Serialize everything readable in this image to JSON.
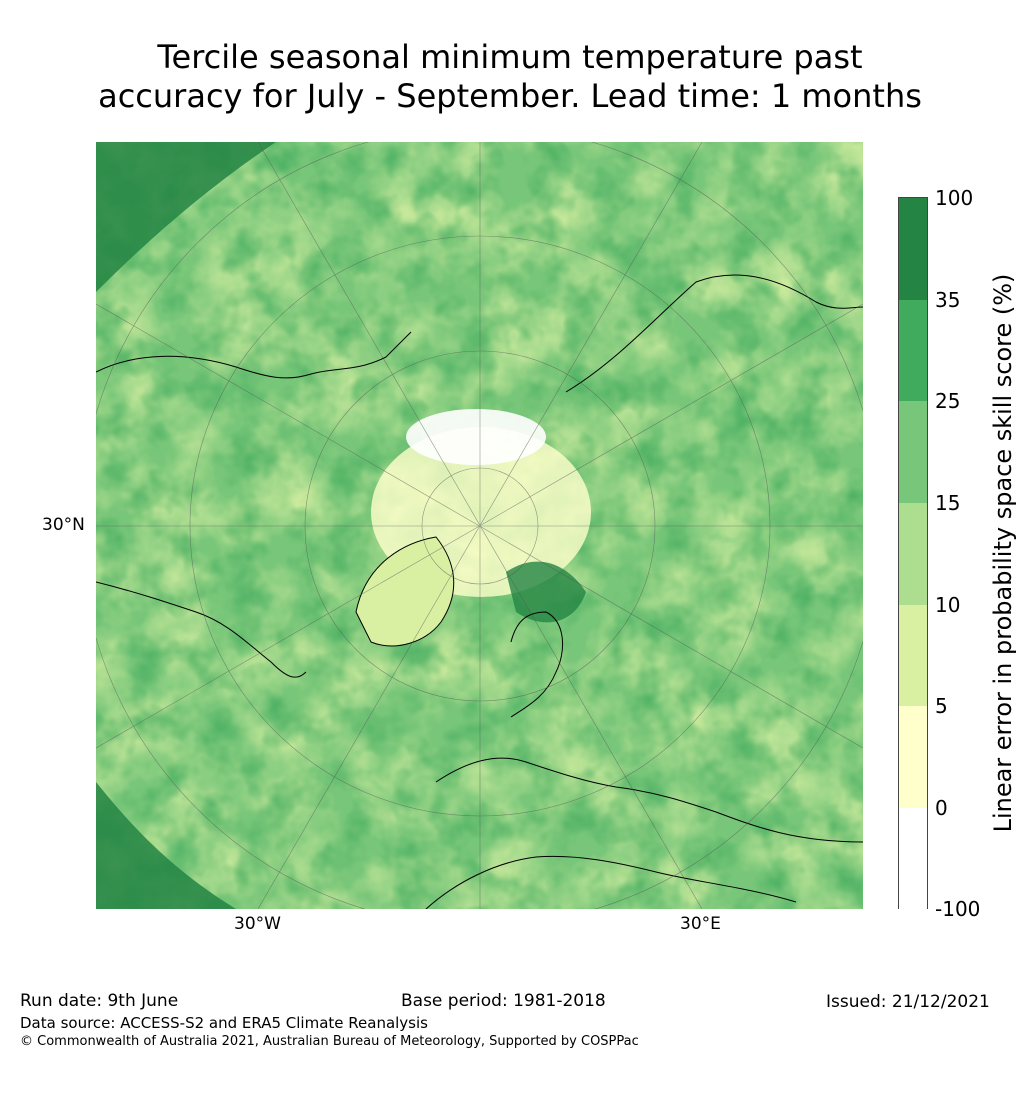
{
  "title_line1": "Tercile seasonal minimum temperature past",
  "title_line2": "accuracy for July - September. Lead time: 1 months",
  "axis_labels": {
    "lat_left": "30°N",
    "lon_left": "30°W",
    "lon_right": "30°E"
  },
  "colorbar": {
    "label": "Linear error in probability space skill score (%)",
    "ticks": [
      "100",
      "35",
      "25",
      "15",
      "10",
      "5",
      "0",
      "-100"
    ],
    "colors": [
      "#238443",
      "#41ab5d",
      "#78c679",
      "#addd8e",
      "#d9f0a3",
      "#ffffcc",
      "#ffffff"
    ]
  },
  "footer": {
    "run_date": "Run date: 9th June",
    "base_period": "Base period: 1981-2018",
    "issued": "Issued: 21/12/2021",
    "data_source": "Data source: ACCESS-S2 and ERA5 Climate Reanalysis",
    "copyright": "© Commonwealth of Australia 2021, Australian Bureau of Meteorology, Supported by COSPPac"
  }
}
